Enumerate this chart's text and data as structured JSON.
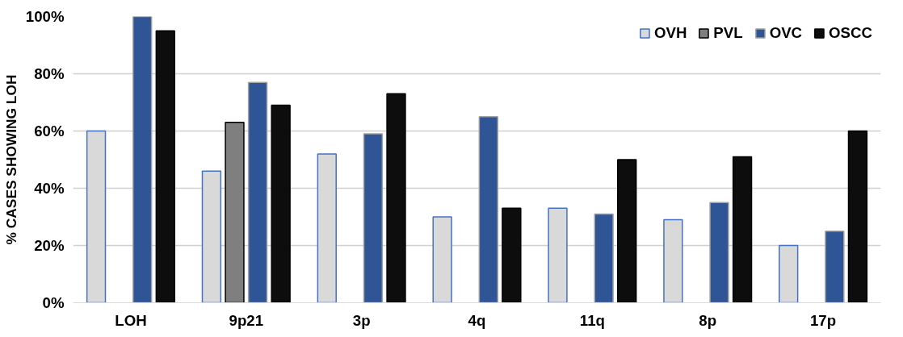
{
  "chart_data": {
    "type": "bar",
    "ylabel": "% CASES SHOWING LOH",
    "categories": [
      "LOH",
      "9p21",
      "3p",
      "4q",
      "11q",
      "8p",
      "17p"
    ],
    "series": [
      {
        "name": "OVH",
        "color": "#d9d9d9",
        "values": [
          60,
          46,
          52,
          30,
          33,
          29,
          20
        ]
      },
      {
        "name": "PVL",
        "color": "#7f7f7f",
        "values": [
          null,
          63,
          null,
          null,
          null,
          null,
          null
        ]
      },
      {
        "name": "OVC",
        "color": "#2f5597",
        "values": [
          100,
          77,
          59,
          65,
          31,
          35,
          25
        ]
      },
      {
        "name": "OSCC",
        "color": "#0d0d0d",
        "values": [
          95,
          69,
          73,
          33,
          50,
          51,
          60
        ]
      }
    ],
    "ylim": [
      0,
      100
    ],
    "yticks": [
      {
        "value": 0,
        "label": "0%"
      },
      {
        "value": 20,
        "label": "20%"
      },
      {
        "value": 40,
        "label": "40%"
      },
      {
        "value": 60,
        "label": "60%"
      },
      {
        "value": 80,
        "label": "80%"
      },
      {
        "value": 100,
        "label": "100%"
      }
    ],
    "grid": "y",
    "legend": "top right"
  }
}
